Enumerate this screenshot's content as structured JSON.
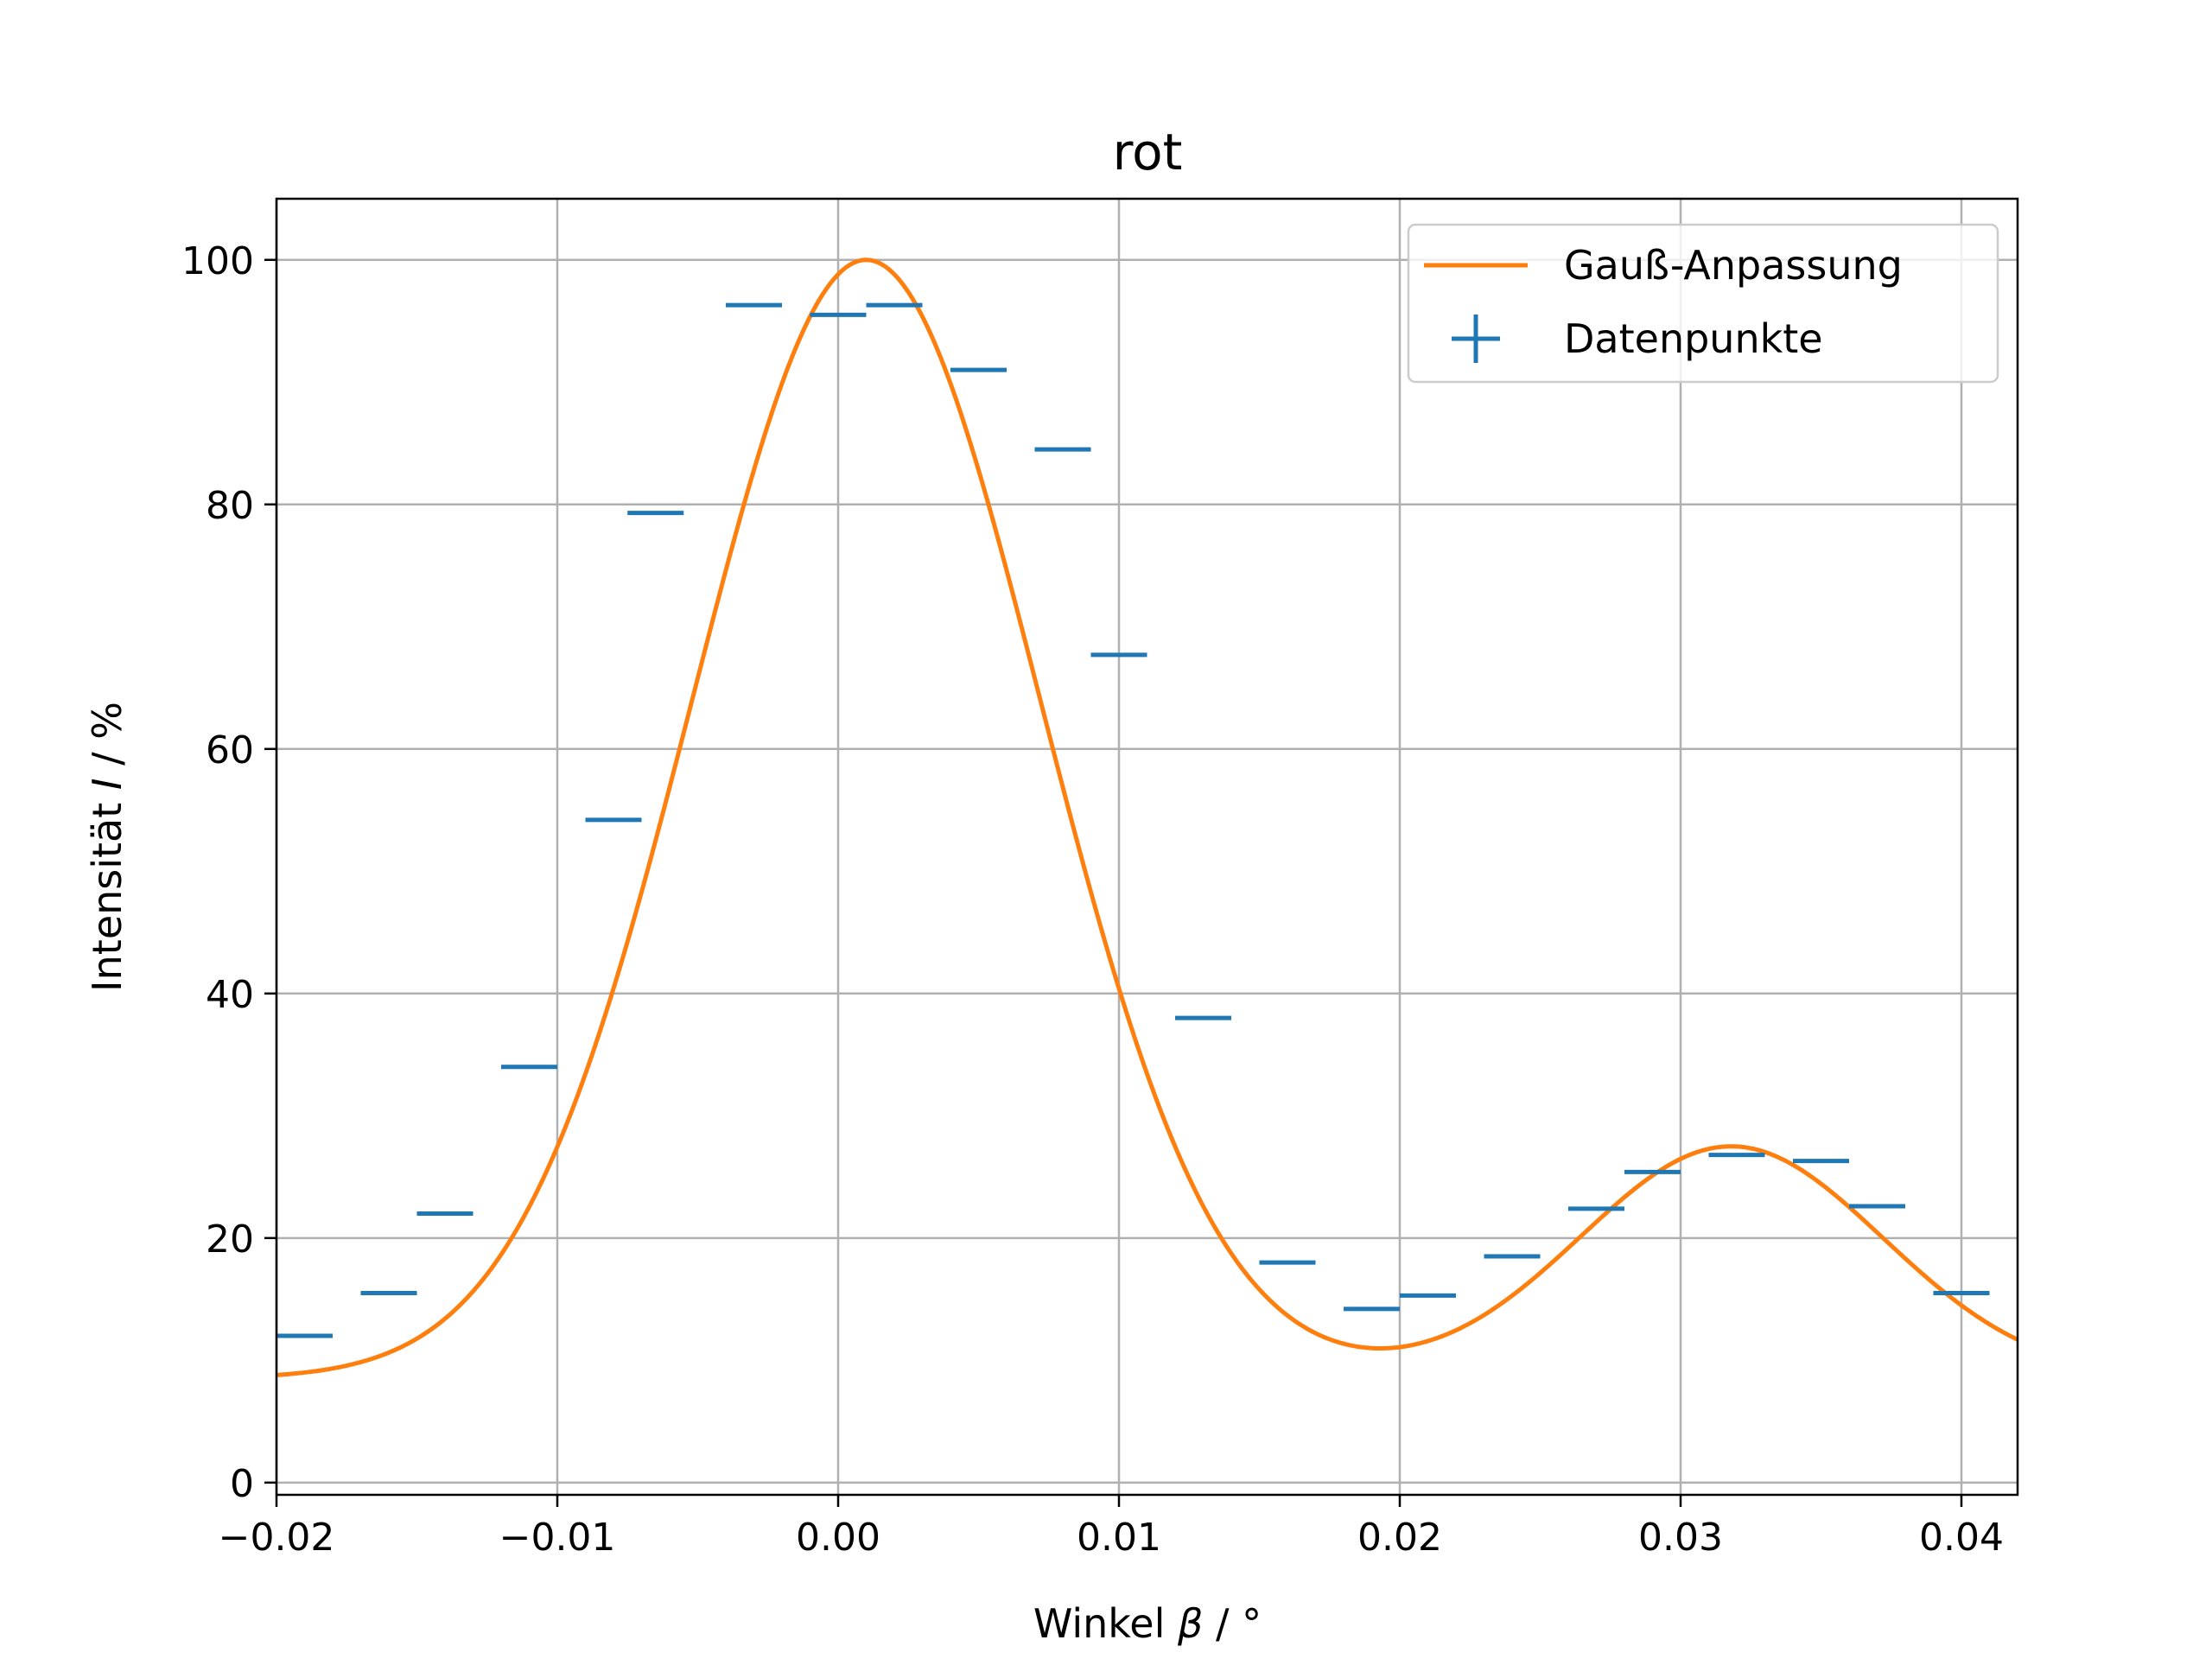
{
  "chart_data": {
    "type": "scatter",
    "title": "rot",
    "xlabel": {
      "prefix": "Winkel ",
      "symbol": "β",
      "suffix": " / °"
    },
    "ylabel": {
      "prefix": "Intensität ",
      "symbol": "I",
      "suffix": " / %"
    },
    "xlim": [
      -0.02,
      0.042
    ],
    "ylim": [
      -1,
      105
    ],
    "grid": true,
    "legend_position": "top-right",
    "x_ticks": [
      -0.02,
      -0.01,
      0.0,
      0.01,
      0.02,
      0.03,
      0.04
    ],
    "x_tick_labels": [
      "−0.02",
      "−0.01",
      "0.00",
      "0.01",
      "0.02",
      "0.03",
      "0.04"
    ],
    "y_ticks": [
      0,
      20,
      40,
      60,
      80,
      100
    ],
    "y_tick_labels": [
      "0",
      "20",
      "40",
      "60",
      "80",
      "100"
    ],
    "colors": {
      "data": "#1f77b4",
      "fit": "#ff7f0e",
      "grid": "#b0b0b0"
    },
    "series": [
      {
        "name": "Gauß-Anpassung",
        "kind": "line",
        "model": "two-gaussian-sum",
        "params": {
          "offset": 8.5,
          "peak1": {
            "amplitude": 91.5,
            "center": 0.001,
            "sigma": 0.0062
          },
          "peak2": {
            "amplitude": 19.0,
            "center": 0.0318,
            "sigma": 0.0054
          }
        }
      },
      {
        "name": "Datenpunkte",
        "kind": "xerror-markers",
        "xerr": 0.001,
        "points": [
          {
            "x": -0.019,
            "y": 12.0
          },
          {
            "x": -0.016,
            "y": 15.5
          },
          {
            "x": -0.014,
            "y": 22.0
          },
          {
            "x": -0.011,
            "y": 34.0
          },
          {
            "x": -0.008,
            "y": 54.2
          },
          {
            "x": -0.0065,
            "y": 79.3
          },
          {
            "x": -0.003,
            "y": 96.3
          },
          {
            "x": 0.0,
            "y": 95.5
          },
          {
            "x": 0.002,
            "y": 96.3
          },
          {
            "x": 0.005,
            "y": 91.0
          },
          {
            "x": 0.008,
            "y": 84.5
          },
          {
            "x": 0.01,
            "y": 67.7
          },
          {
            "x": 0.013,
            "y": 38.0
          },
          {
            "x": 0.016,
            "y": 18.0
          },
          {
            "x": 0.019,
            "y": 14.2
          },
          {
            "x": 0.021,
            "y": 15.3
          },
          {
            "x": 0.024,
            "y": 18.5
          },
          {
            "x": 0.027,
            "y": 22.4
          },
          {
            "x": 0.029,
            "y": 25.4
          },
          {
            "x": 0.032,
            "y": 26.8
          },
          {
            "x": 0.035,
            "y": 26.3
          },
          {
            "x": 0.037,
            "y": 22.6
          },
          {
            "x": 0.04,
            "y": 15.5
          }
        ]
      }
    ]
  }
}
